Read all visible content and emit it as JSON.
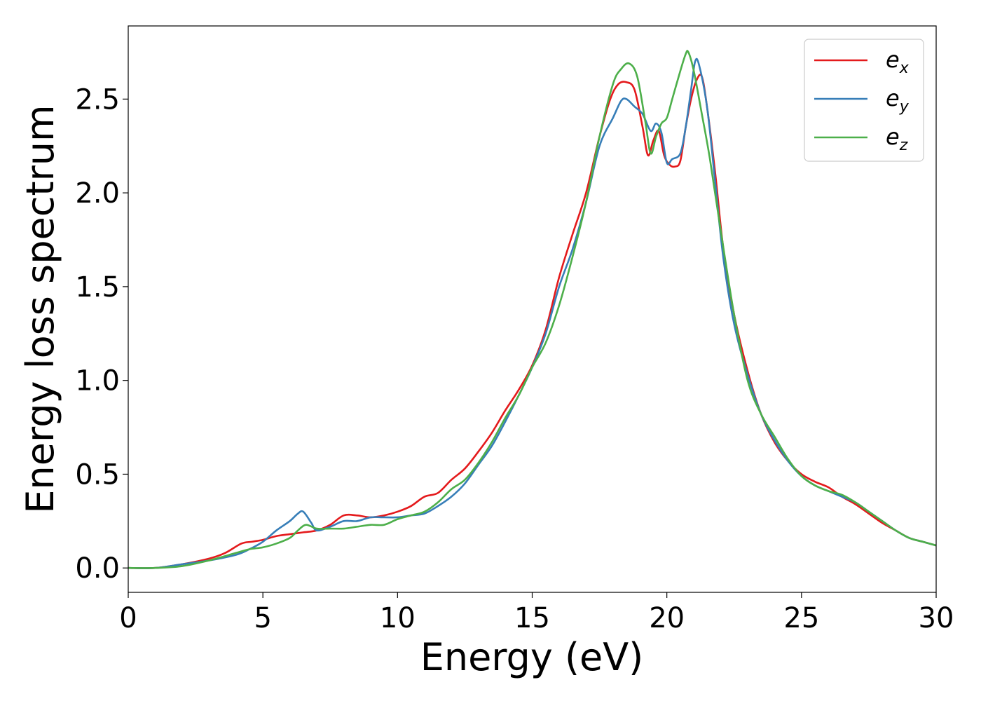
{
  "chart_data": {
    "type": "line",
    "xlabel": "Energy (eV)",
    "ylabel": "Energy loss spectrum",
    "xlim": [
      0,
      30
    ],
    "ylim": [
      -0.13,
      2.89
    ],
    "xticks": [
      0,
      5,
      10,
      15,
      20,
      25,
      30
    ],
    "xtick_labels": [
      "0",
      "5",
      "10",
      "15",
      "20",
      "25",
      "30"
    ],
    "yticks": [
      0.0,
      0.5,
      1.0,
      1.5,
      2.0,
      2.5
    ],
    "ytick_labels": [
      "0.0",
      "0.5",
      "1.0",
      "1.5",
      "2.0",
      "2.5"
    ],
    "grid": false,
    "legend_position": "top-right",
    "series": [
      {
        "name": "e_x",
        "legend_main": "e",
        "legend_sub": "x",
        "color": "#e41a1c",
        "x": [
          0,
          1,
          2,
          3,
          3.6,
          4.2,
          4.6,
          5,
          5.5,
          6,
          6.5,
          7,
          7.5,
          8,
          8.5,
          9,
          9.5,
          10,
          10.5,
          11,
          11.5,
          12,
          12.5,
          13,
          13.5,
          14,
          14.5,
          15,
          15.5,
          16,
          16.5,
          17,
          17.5,
          17.9,
          18.2,
          18.5,
          18.8,
          19.1,
          19.3,
          19.5,
          19.7,
          19.9,
          20.1,
          20.3,
          20.5,
          20.7,
          20.9,
          21.1,
          21.3,
          21.5,
          21.8,
          22.1,
          22.5,
          23,
          23.5,
          24,
          24.5,
          25,
          25.5,
          26,
          26.5,
          27,
          27.5,
          28,
          28.5,
          29,
          29.5,
          30
        ],
        "y": [
          0.0,
          0.0,
          0.02,
          0.05,
          0.08,
          0.13,
          0.14,
          0.15,
          0.17,
          0.18,
          0.19,
          0.2,
          0.23,
          0.28,
          0.28,
          0.27,
          0.28,
          0.3,
          0.33,
          0.38,
          0.4,
          0.47,
          0.53,
          0.62,
          0.72,
          0.84,
          0.95,
          1.08,
          1.27,
          1.55,
          1.78,
          2.0,
          2.3,
          2.5,
          2.58,
          2.59,
          2.55,
          2.35,
          2.2,
          2.28,
          2.33,
          2.2,
          2.15,
          2.14,
          2.17,
          2.35,
          2.5,
          2.6,
          2.62,
          2.45,
          2.1,
          1.7,
          1.35,
          1.05,
          0.82,
          0.67,
          0.57,
          0.5,
          0.46,
          0.43,
          0.38,
          0.34,
          0.29,
          0.24,
          0.2,
          0.16,
          0.14,
          0.12
        ]
      },
      {
        "name": "e_y",
        "legend_main": "e",
        "legend_sub": "y",
        "color": "#377eb8",
        "x": [
          0,
          1,
          2,
          3,
          4,
          4.5,
          5,
          5.5,
          6,
          6.3,
          6.5,
          6.8,
          7,
          7.5,
          8,
          8.5,
          9,
          9.5,
          10,
          10.5,
          11,
          11.5,
          12,
          12.5,
          13,
          13.5,
          14,
          14.5,
          15,
          15.5,
          16,
          16.5,
          17,
          17.5,
          18,
          18.3,
          18.5,
          18.8,
          19.1,
          19.4,
          19.6,
          19.8,
          20,
          20.2,
          20.5,
          20.7,
          20.9,
          21.05,
          21.2,
          21.5,
          21.8,
          22.1,
          22.5,
          23,
          23.5,
          24,
          24.5,
          25,
          25.5,
          26,
          26.5,
          27,
          27.5,
          28,
          28.5,
          29,
          29.5,
          30
        ],
        "y": [
          0.0,
          0.0,
          0.02,
          0.04,
          0.07,
          0.1,
          0.14,
          0.2,
          0.25,
          0.29,
          0.3,
          0.24,
          0.2,
          0.22,
          0.25,
          0.25,
          0.27,
          0.27,
          0.27,
          0.28,
          0.29,
          0.33,
          0.38,
          0.45,
          0.55,
          0.65,
          0.78,
          0.92,
          1.07,
          1.25,
          1.5,
          1.7,
          1.95,
          2.25,
          2.4,
          2.49,
          2.5,
          2.46,
          2.42,
          2.33,
          2.37,
          2.32,
          2.16,
          2.18,
          2.21,
          2.35,
          2.55,
          2.7,
          2.68,
          2.45,
          2.05,
          1.65,
          1.3,
          1.03,
          0.82,
          0.68,
          0.57,
          0.49,
          0.44,
          0.41,
          0.38,
          0.35,
          0.3,
          0.25,
          0.2,
          0.16,
          0.14,
          0.12
        ]
      },
      {
        "name": "e_z",
        "legend_main": "e",
        "legend_sub": "z",
        "color": "#4daf4a",
        "x": [
          0,
          1,
          2,
          3,
          4,
          4.5,
          5,
          5.5,
          6,
          6.3,
          6.6,
          7,
          7.5,
          8,
          8.5,
          9,
          9.5,
          10,
          10.5,
          11,
          11.5,
          12,
          12.5,
          13,
          13.5,
          14,
          14.5,
          15,
          15.5,
          16,
          16.5,
          17,
          17.5,
          18,
          18.3,
          18.6,
          18.9,
          19.2,
          19.4,
          19.6,
          19.8,
          20,
          20.2,
          20.5,
          20.7,
          20.8,
          21,
          21.3,
          21.6,
          22,
          22.5,
          23,
          23.5,
          24,
          24.5,
          25,
          25.5,
          26,
          26.5,
          27,
          27.5,
          28,
          28.5,
          29,
          29.5,
          30
        ],
        "y": [
          0.0,
          0.0,
          0.01,
          0.04,
          0.08,
          0.1,
          0.11,
          0.13,
          0.16,
          0.2,
          0.23,
          0.21,
          0.21,
          0.21,
          0.22,
          0.23,
          0.23,
          0.26,
          0.28,
          0.3,
          0.35,
          0.42,
          0.47,
          0.56,
          0.67,
          0.8,
          0.92,
          1.07,
          1.2,
          1.4,
          1.66,
          1.95,
          2.3,
          2.58,
          2.66,
          2.69,
          2.62,
          2.38,
          2.21,
          2.3,
          2.37,
          2.4,
          2.5,
          2.65,
          2.74,
          2.75,
          2.65,
          2.42,
          2.18,
          1.8,
          1.35,
          1.0,
          0.82,
          0.7,
          0.58,
          0.49,
          0.44,
          0.41,
          0.39,
          0.35,
          0.3,
          0.25,
          0.2,
          0.16,
          0.14,
          0.12
        ]
      }
    ]
  }
}
